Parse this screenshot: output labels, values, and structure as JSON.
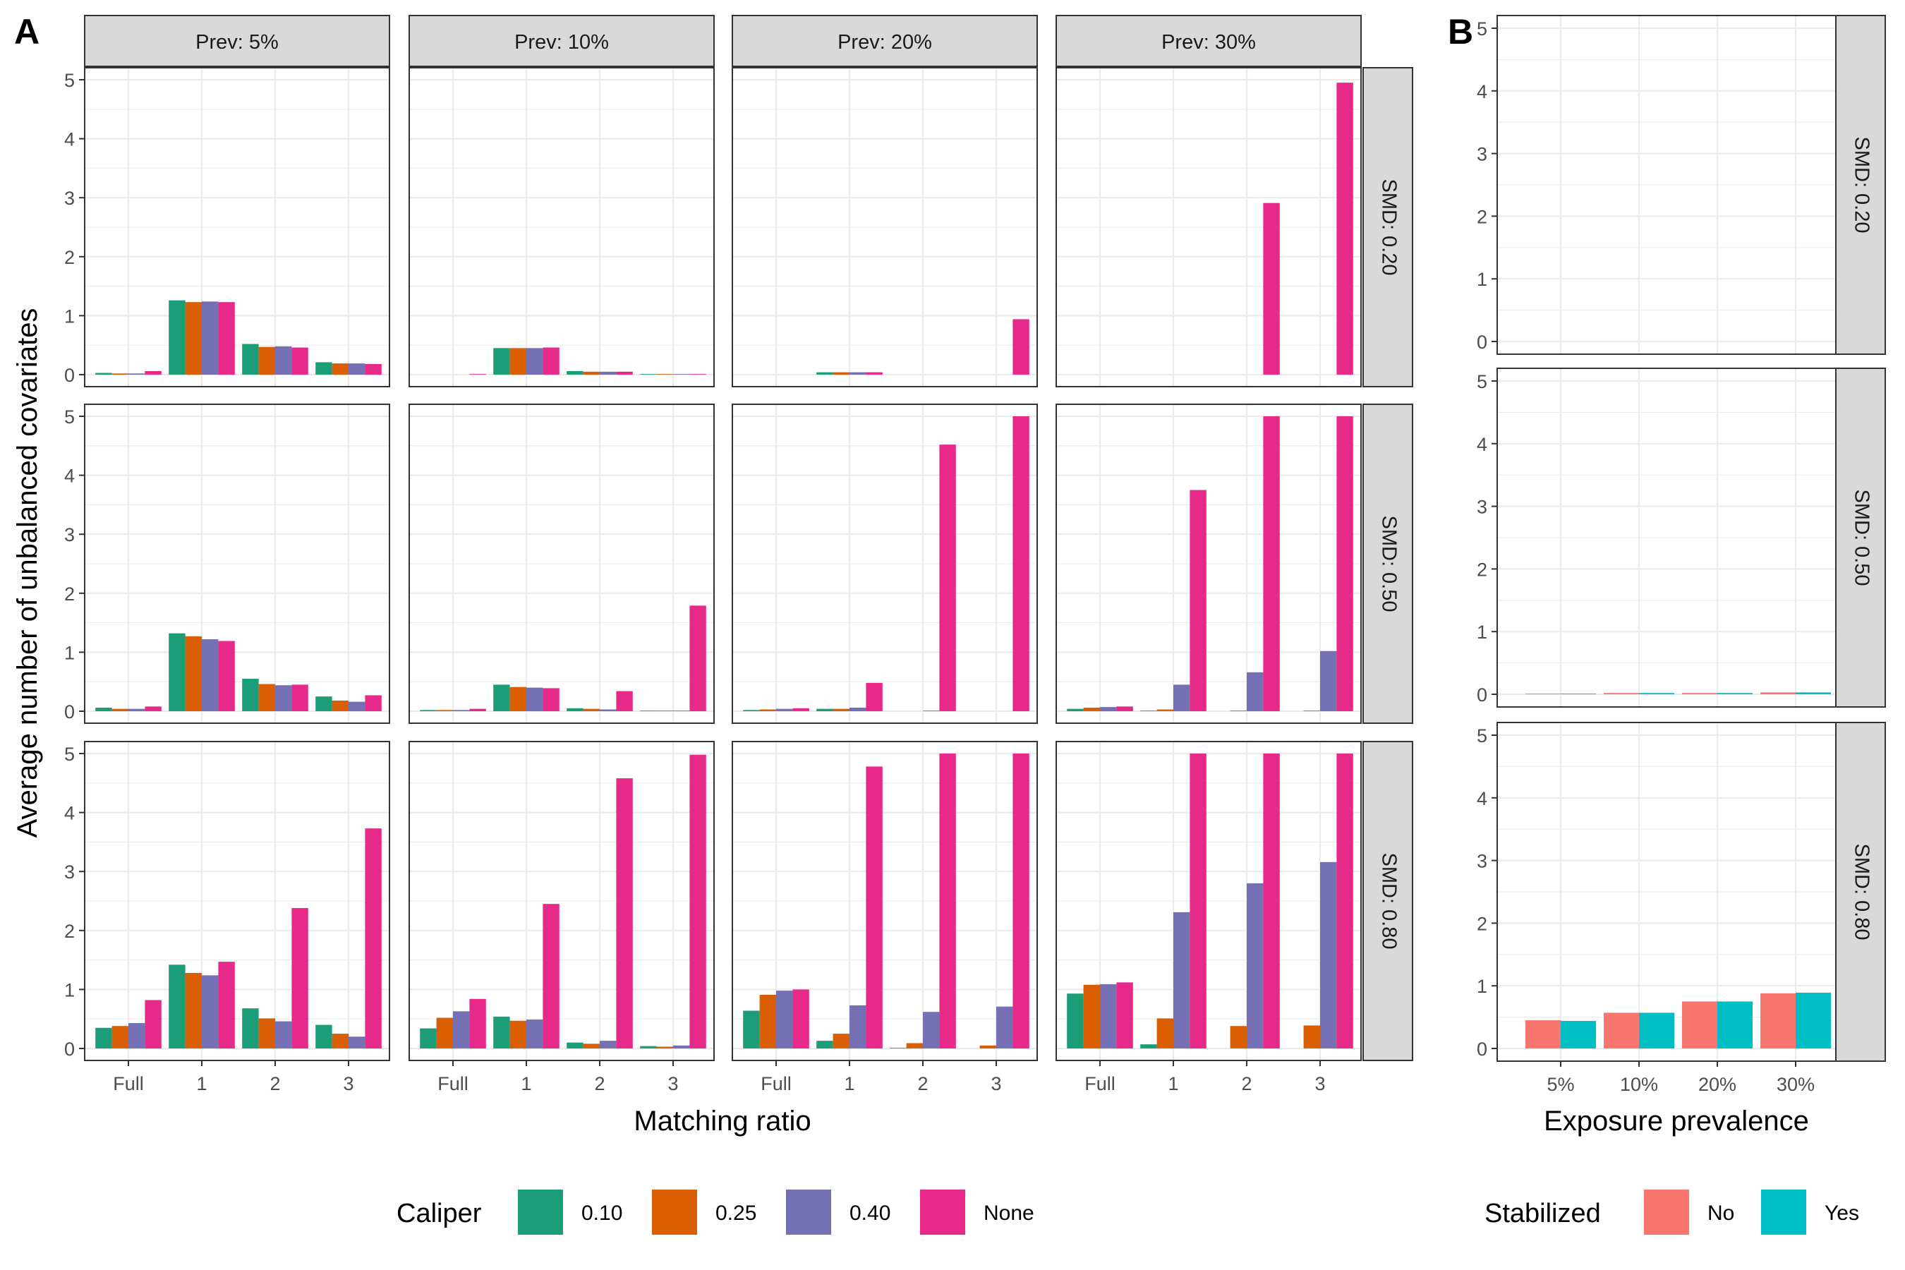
{
  "figure": {
    "panel_a_letter": "A",
    "panel_b_letter": "B"
  },
  "colors": {
    "caliper": [
      "#1B9E77",
      "#D95F02",
      "#7570B3",
      "#E7298A"
    ],
    "stabilized": [
      "#F8766D",
      "#00BFC4"
    ],
    "strip_fill": "#D9D9D9",
    "grid": "#EBEBEB",
    "panel_border": "#333333"
  },
  "legend_a": {
    "title": "Caliper",
    "labels": [
      "0.10",
      "0.25",
      "0.40",
      "None"
    ]
  },
  "legend_b": {
    "title": "Stabilized",
    "labels": [
      "No",
      "Yes"
    ]
  },
  "chart_data": [
    {
      "type": "bar",
      "panel": "A",
      "ylabel": "Average number of unbalanced covariates",
      "xlabel": "Matching ratio",
      "categories": [
        "Full",
        "1",
        "2",
        "3"
      ],
      "ylim": [
        0,
        5
      ],
      "yticks": [
        "0",
        "1",
        "2",
        "3",
        "4",
        "5"
      ],
      "col_facets": [
        "Prev: 5%",
        "Prev: 10%",
        "Prev: 20%",
        "Prev: 30%"
      ],
      "row_facets": [
        "SMD: 0.20",
        "SMD: 0.50",
        "SMD: 0.80"
      ],
      "series_names": [
        "0.10",
        "0.25",
        "0.40",
        "None"
      ],
      "grid": true,
      "legend_position": "bottom",
      "values": [
        [
          [
            [
              0.03,
              0.02,
              0.02,
              0.06
            ],
            [
              1.26,
              1.23,
              1.24,
              1.23
            ],
            [
              0.52,
              0.47,
              0.48,
              0.46
            ],
            [
              0.21,
              0.19,
              0.19,
              0.18
            ]
          ],
          [
            [
              0.0,
              0.0,
              0.0,
              0.01
            ],
            [
              0.45,
              0.45,
              0.45,
              0.46
            ],
            [
              0.06,
              0.05,
              0.05,
              0.05
            ],
            [
              0.01,
              0.01,
              0.01,
              0.01
            ]
          ],
          [
            [
              0.0,
              0.0,
              0.0,
              0.0
            ],
            [
              0.04,
              0.04,
              0.04,
              0.04
            ],
            [
              0.0,
              0.0,
              0.0,
              0.0
            ],
            [
              0.0,
              0.0,
              0.0,
              0.94
            ]
          ],
          [
            [
              0.0,
              0.0,
              0.0,
              0.0
            ],
            [
              0.0,
              0.0,
              0.0,
              0.0
            ],
            [
              0.0,
              0.0,
              0.0,
              2.91
            ],
            [
              0.0,
              0.0,
              0.0,
              4.95
            ]
          ]
        ],
        [
          [
            [
              0.06,
              0.04,
              0.04,
              0.08
            ],
            [
              1.32,
              1.27,
              1.22,
              1.19
            ],
            [
              0.55,
              0.46,
              0.44,
              0.45
            ],
            [
              0.25,
              0.18,
              0.16,
              0.27
            ]
          ],
          [
            [
              0.02,
              0.02,
              0.02,
              0.04
            ],
            [
              0.45,
              0.41,
              0.4,
              0.39
            ],
            [
              0.05,
              0.04,
              0.03,
              0.34
            ],
            [
              0.01,
              0.01,
              0.01,
              1.79
            ]
          ],
          [
            [
              0.02,
              0.03,
              0.04,
              0.05
            ],
            [
              0.04,
              0.04,
              0.06,
              0.48
            ],
            [
              0.0,
              0.0,
              0.01,
              4.52
            ],
            [
              0.0,
              0.0,
              0.0,
              5.0
            ]
          ],
          [
            [
              0.04,
              0.06,
              0.07,
              0.08
            ],
            [
              0.01,
              0.03,
              0.45,
              3.75
            ],
            [
              0.0,
              0.01,
              0.66,
              5.0
            ],
            [
              0.0,
              0.01,
              1.02,
              5.0
            ]
          ]
        ],
        [
          [
            [
              0.35,
              0.38,
              0.43,
              0.82
            ],
            [
              1.42,
              1.28,
              1.24,
              1.47
            ],
            [
              0.68,
              0.51,
              0.46,
              2.38
            ],
            [
              0.4,
              0.25,
              0.2,
              3.73
            ]
          ],
          [
            [
              0.34,
              0.52,
              0.63,
              0.84
            ],
            [
              0.54,
              0.47,
              0.49,
              2.45
            ],
            [
              0.1,
              0.08,
              0.13,
              4.58
            ],
            [
              0.04,
              0.03,
              0.05,
              4.98
            ]
          ],
          [
            [
              0.64,
              0.91,
              0.98,
              1.0
            ],
            [
              0.13,
              0.25,
              0.73,
              4.78
            ],
            [
              0.01,
              0.09,
              0.62,
              5.0
            ],
            [
              0.0,
              0.05,
              0.71,
              5.0
            ]
          ],
          [
            [
              0.93,
              1.08,
              1.09,
              1.12
            ],
            [
              0.07,
              0.51,
              2.31,
              5.0
            ],
            [
              0.0,
              0.38,
              2.8,
              5.0
            ],
            [
              0.0,
              0.39,
              3.16,
              5.0
            ]
          ]
        ]
      ]
    },
    {
      "type": "bar",
      "panel": "B",
      "xlabel": "Exposure prevalence",
      "categories": [
        "5%",
        "10%",
        "20%",
        "30%"
      ],
      "ylim": [
        0,
        5
      ],
      "yticks": [
        "0",
        "1",
        "2",
        "3",
        "4",
        "5"
      ],
      "row_facets": [
        "SMD: 0.20",
        "SMD: 0.50",
        "SMD: 0.80"
      ],
      "series_names": [
        "No",
        "Yes"
      ],
      "grid": true,
      "legend_position": "bottom",
      "values": [
        [
          [
            0.0,
            0.0
          ],
          [
            0.0,
            0.0
          ],
          [
            0.0,
            0.0
          ],
          [
            0.0,
            0.0
          ]
        ],
        [
          [
            0.01,
            0.01
          ],
          [
            0.02,
            0.02
          ],
          [
            0.02,
            0.02
          ],
          [
            0.03,
            0.03
          ]
        ],
        [
          [
            0.45,
            0.44
          ],
          [
            0.57,
            0.57
          ],
          [
            0.75,
            0.75
          ],
          [
            0.88,
            0.89
          ]
        ]
      ]
    }
  ]
}
